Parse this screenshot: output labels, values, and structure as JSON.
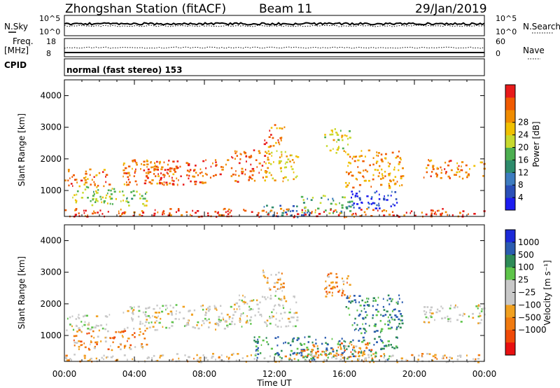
{
  "header": {
    "station": "Zhongshan Station (fitACF)",
    "beam": "Beam 11",
    "date": "29/Jan/2019"
  },
  "panels": {
    "nsky_label": "N.Sky",
    "nsky_ticks": [
      "10^5",
      "10^0"
    ],
    "nsearch_label": "N.Search",
    "nsearch_ticks": [
      "10^5",
      "10^0"
    ],
    "freq_label": "Freq.",
    "freq_unit": "[MHz]",
    "freq_ticks": [
      "18",
      "8"
    ],
    "nave_label": "Nave",
    "nave_ticks": [
      "60",
      "0"
    ],
    "cpid_label": "CPID",
    "cpid_value": "normal (fast stereo) 153"
  },
  "chart_data": [
    {
      "type": "heatmap",
      "name": "power",
      "ylabel": "Slant Range [km]",
      "xlabel": "Time UT",
      "x_ticks": [
        "00:00",
        "04:00",
        "08:00",
        "12:00",
        "16:00",
        "20:00",
        "00:00"
      ],
      "y_ticks": [
        "1000",
        "2000",
        "3000",
        "4000"
      ],
      "ylim": [
        180,
        4500
      ],
      "colorbar": {
        "label": "Power [dB]",
        "ticks": [
          "4",
          "8",
          "12",
          "16",
          "20",
          "24",
          "28"
        ],
        "colors": [
          "#1c1cf0",
          "#2a4fb8",
          "#3d7cc0",
          "#2e8b6c",
          "#4caf50",
          "#c7d92e",
          "#f0c000",
          "#f08c00",
          "#f05a00",
          "#e81a1a"
        ]
      },
      "echo_regions": [
        {
          "t0": 0.0,
          "t1": 2.6,
          "r0": 1150,
          "r1": 1700,
          "level": 0.2
        },
        {
          "t0": 0.4,
          "t1": 2.8,
          "r0": 650,
          "r1": 1150,
          "level": 0.45
        },
        {
          "t0": 1.5,
          "t1": 4.7,
          "r0": 550,
          "r1": 1100,
          "level": 0.5
        },
        {
          "t0": 3.3,
          "t1": 6.2,
          "r0": 1200,
          "r1": 2000,
          "level": 0.2
        },
        {
          "t0": 4.5,
          "t1": 9.5,
          "r0": 1200,
          "r1": 2000,
          "level": 0.15
        },
        {
          "t0": 9.5,
          "t1": 11.5,
          "r0": 1300,
          "r1": 2300,
          "level": 0.15
        },
        {
          "t0": 11.3,
          "t1": 13.3,
          "r0": 1300,
          "r1": 2300,
          "level": 0.35
        },
        {
          "t0": 11.3,
          "t1": 12.6,
          "r0": 2400,
          "r1": 3100,
          "level": 0.2
        },
        {
          "t0": 14.8,
          "t1": 16.3,
          "r0": 2200,
          "r1": 3000,
          "level": 0.4
        },
        {
          "t0": 16.0,
          "t1": 19.3,
          "r0": 1100,
          "r1": 2300,
          "level": 0.25
        },
        {
          "t0": 10.8,
          "t1": 14.0,
          "r0": 180,
          "r1": 550,
          "level": 0.75
        },
        {
          "t0": 13.5,
          "t1": 16.5,
          "r0": 300,
          "r1": 900,
          "level": 0.6
        },
        {
          "t0": 16.3,
          "t1": 19.0,
          "r0": 450,
          "r1": 1000,
          "level": 0.9
        },
        {
          "t0": 20.5,
          "t1": 24.0,
          "r0": 1400,
          "r1": 2000,
          "level": 0.2
        },
        {
          "t0": 0.0,
          "t1": 24.0,
          "r0": 180,
          "r1": 450,
          "level": 0.1
        }
      ]
    },
    {
      "type": "heatmap",
      "name": "velocity",
      "ylabel": "Slant Range [km]",
      "xlabel": "Time UT",
      "x_ticks": [
        "00:00",
        "04:00",
        "08:00",
        "12:00",
        "16:00",
        "20:00",
        "00:00"
      ],
      "y_ticks": [
        "1000",
        "2000",
        "3000",
        "4000"
      ],
      "ylim": [
        180,
        4500
      ],
      "colorbar": {
        "label": "Velocity [m s⁻¹]",
        "ticks": [
          "1000",
          "500",
          "100",
          "25",
          "−25",
          "−100",
          "−500",
          "−1000"
        ],
        "colors": [
          "#1c2ad8",
          "#2b5cb0",
          "#2e8b57",
          "#5ec44a",
          "#c8c8c8",
          "#c8c8c8",
          "#f0a020",
          "#f07a10",
          "#f04a08",
          "#e81010"
        ]
      },
      "echo_regions": [
        {
          "t0": 0.0,
          "t1": 2.6,
          "r0": 1150,
          "r1": 1700,
          "level": 0.48
        },
        {
          "t0": 0.4,
          "t1": 4.7,
          "r0": 550,
          "r1": 1200,
          "level": 0.7
        },
        {
          "t0": 3.3,
          "t1": 9.5,
          "r0": 1200,
          "r1": 2000,
          "level": 0.5
        },
        {
          "t0": 9.5,
          "t1": 13.3,
          "r0": 1300,
          "r1": 2300,
          "level": 0.5
        },
        {
          "t0": 11.3,
          "t1": 12.6,
          "r0": 2400,
          "r1": 3100,
          "level": 0.65
        },
        {
          "t0": 14.8,
          "t1": 16.3,
          "r0": 2200,
          "r1": 3000,
          "level": 0.72
        },
        {
          "t0": 16.0,
          "t1": 19.3,
          "r0": 1100,
          "r1": 2300,
          "level": 0.25
        },
        {
          "t0": 10.8,
          "t1": 19.0,
          "r0": 250,
          "r1": 1000,
          "level": 0.25
        },
        {
          "t0": 13.5,
          "t1": 17.5,
          "r0": 350,
          "r1": 800,
          "level": 0.72
        },
        {
          "t0": 20.5,
          "t1": 24.0,
          "r0": 1400,
          "r1": 2000,
          "level": 0.5
        },
        {
          "t0": 0.0,
          "t1": 24.0,
          "r0": 180,
          "r1": 450,
          "level": 0.6
        }
      ]
    }
  ]
}
